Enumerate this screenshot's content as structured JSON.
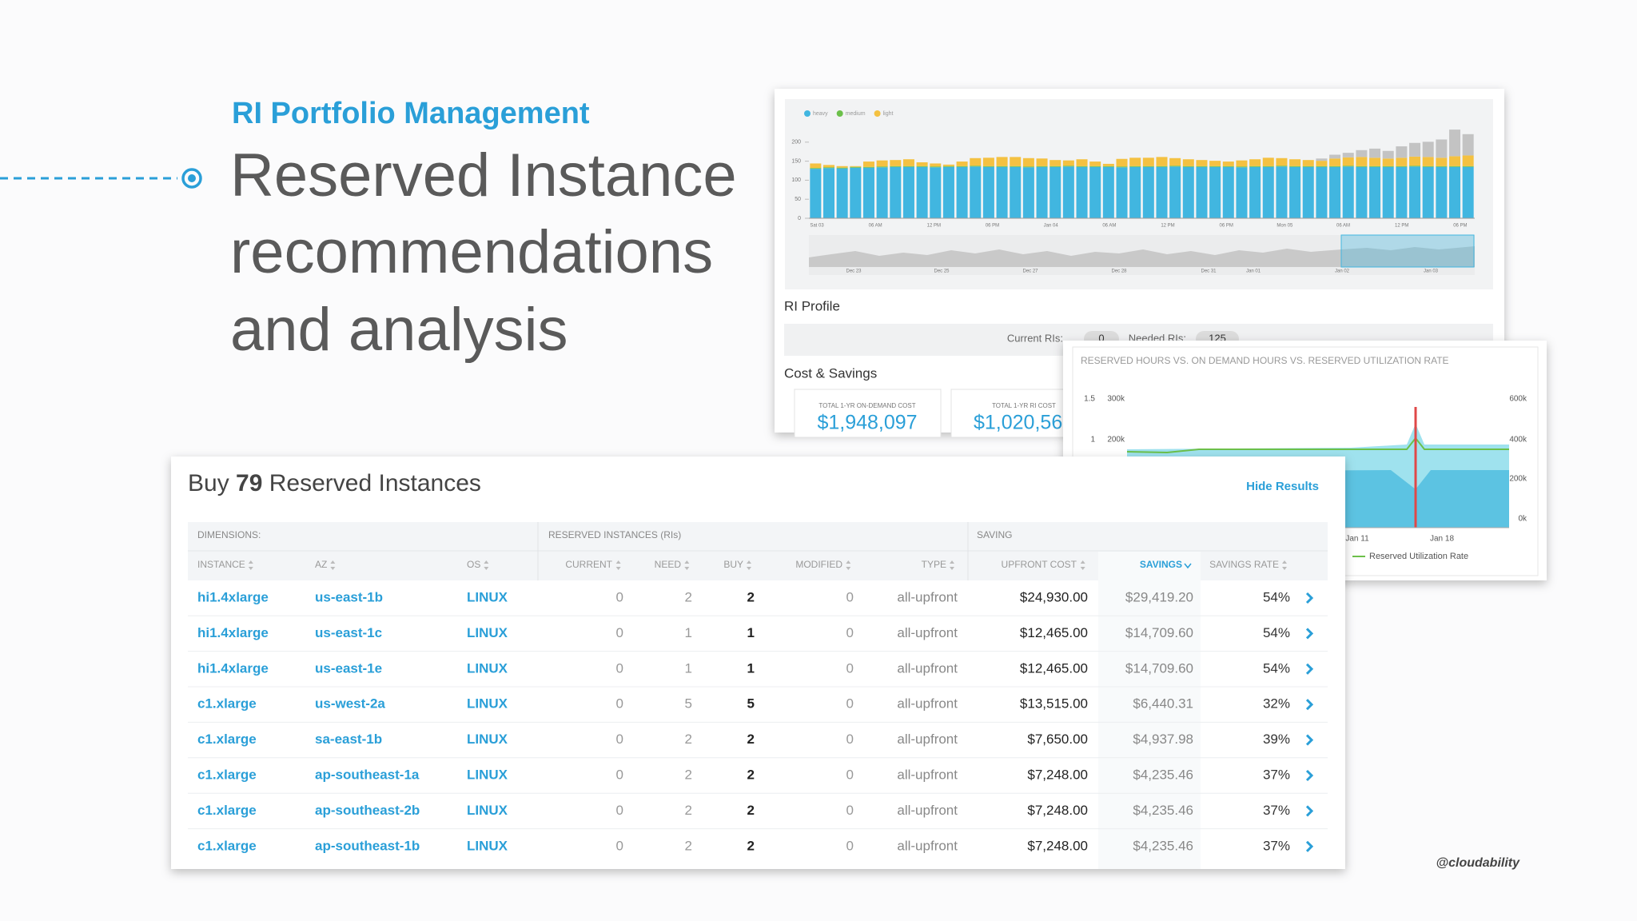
{
  "slide": {
    "kicker": "RI Portfolio Management",
    "headline": [
      "Reserved Instance",
      "recommendations",
      "and analysis"
    ],
    "credit": "@cloudability"
  },
  "usage_chart": {
    "type": "bar",
    "stacked": true,
    "ylim": [
      0,
      250
    ],
    "yticks": [
      0,
      50,
      100,
      150,
      200
    ],
    "x_labels": [
      "Sat 03",
      "06 AM",
      "12 PM",
      "06 PM",
      "Jan 04",
      "06 AM",
      "12 PM",
      "06 PM",
      "Mon 05",
      "06 AM",
      "12 PM",
      "06 PM"
    ],
    "navigator_labels": [
      "Dec 23",
      "Dec 25",
      "Dec 27",
      "Dec 28",
      "Dec 31",
      "Jan 01",
      "Jan 02",
      "Jan 03"
    ],
    "series": [
      {
        "name": "heavy",
        "color": "#41b6e0",
        "values": [
          130,
          132,
          131,
          133,
          133,
          134,
          135,
          135,
          135,
          134,
          135,
          135,
          136,
          135,
          135,
          135,
          134,
          135,
          135,
          136,
          135,
          135,
          135,
          134,
          135,
          135,
          135,
          136,
          135,
          135,
          135,
          135,
          134,
          135,
          135,
          136,
          135,
          135,
          135,
          135,
          136,
          135,
          135,
          135,
          135,
          136,
          135,
          135,
          135,
          135
        ]
      },
      {
        "name": "medium",
        "color": "#6cc04a",
        "values": [
          2,
          2,
          2,
          2,
          2,
          2,
          2,
          2,
          2,
          2,
          2,
          2,
          2,
          2,
          2,
          2,
          2,
          2,
          2,
          2,
          2,
          2,
          2,
          2,
          2,
          2,
          2,
          2,
          2,
          2,
          2,
          2,
          2,
          2,
          2,
          2,
          2,
          2,
          2,
          2,
          2,
          2,
          2,
          2,
          2,
          2,
          2,
          2,
          2,
          2
        ]
      },
      {
        "name": "light",
        "color": "#f4c141",
        "values": [
          12,
          6,
          4,
          2,
          14,
          16,
          16,
          18,
          10,
          8,
          4,
          12,
          20,
          22,
          24,
          24,
          22,
          20,
          16,
          14,
          18,
          12,
          6,
          20,
          22,
          22,
          24,
          20,
          18,
          16,
          14,
          12,
          16,
          18,
          22,
          20,
          18,
          16,
          14,
          20,
          22,
          24,
          22,
          20,
          22,
          24,
          24,
          22,
          26,
          28
        ]
      },
      {
        "color": "#c3c3c3",
        "values": [
          0,
          0,
          0,
          0,
          0,
          0,
          0,
          0,
          0,
          0,
          0,
          0,
          0,
          0,
          0,
          0,
          0,
          0,
          0,
          0,
          0,
          0,
          0,
          0,
          0,
          0,
          0,
          0,
          0,
          0,
          0,
          0,
          0,
          0,
          0,
          0,
          0,
          0,
          6,
          10,
          12,
          18,
          24,
          20,
          30,
          36,
          40,
          48,
          70,
          56
        ]
      }
    ]
  },
  "ri_profile": {
    "title": "RI Profile",
    "current_label": "Current RIs:",
    "current": 0,
    "needed_label": "Needed RIs:",
    "needed": 125
  },
  "cost_savings": {
    "title": "Cost & Savings",
    "cards": [
      {
        "label": "TOTAL 1-YR ON-DEMAND COST",
        "value": "$1,948,097"
      },
      {
        "label": "TOTAL 1-YR RI COST",
        "value": "$1,020,56"
      }
    ]
  },
  "hours_chart": {
    "title": "RESERVED HOURS VS. ON DEMAND HOURS VS. RESERVED UTILIZATION RATE",
    "left_ticks": [
      "1.5",
      "1"
    ],
    "left_ticks_2": [
      "300k",
      "200k"
    ],
    "right_ticks": [
      "600k",
      "400k",
      "200k",
      "0k"
    ],
    "x_labels": [
      "Jan 11",
      "Jan 18"
    ],
    "legend": "Reserved Utilization Rate"
  },
  "table": {
    "title_prefix": "Buy",
    "count": 79,
    "title_suffix": "Reserved Instances",
    "action": "Hide Results",
    "groups": [
      "DIMENSIONS:",
      "RESERVED INSTANCES (RIs)",
      "SAVING"
    ],
    "columns": [
      "INSTANCE",
      "AZ",
      "OS",
      "CURRENT",
      "NEED",
      "BUY",
      "MODIFIED",
      "TYPE",
      "UPFRONT COST",
      "SAVINGS",
      "SAVINGS RATE"
    ],
    "rows": [
      [
        "hi1.4xlarge",
        "us-east-1b",
        "LINUX",
        0,
        2,
        2,
        0,
        "all-upfront",
        "$24,930.00",
        "$29,419.20",
        "54%"
      ],
      [
        "hi1.4xlarge",
        "us-east-1c",
        "LINUX",
        0,
        1,
        1,
        0,
        "all-upfront",
        "$12,465.00",
        "$14,709.60",
        "54%"
      ],
      [
        "hi1.4xlarge",
        "us-east-1e",
        "LINUX",
        0,
        1,
        1,
        0,
        "all-upfront",
        "$12,465.00",
        "$14,709.60",
        "54%"
      ],
      [
        "c1.xlarge",
        "us-west-2a",
        "LINUX",
        0,
        5,
        5,
        0,
        "all-upfront",
        "$13,515.00",
        "$6,440.31",
        "32%"
      ],
      [
        "c1.xlarge",
        "sa-east-1b",
        "LINUX",
        0,
        2,
        2,
        0,
        "all-upfront",
        "$7,650.00",
        "$4,937.98",
        "39%"
      ],
      [
        "c1.xlarge",
        "ap-southeast-1a",
        "LINUX",
        0,
        2,
        2,
        0,
        "all-upfront",
        "$7,248.00",
        "$4,235.46",
        "37%"
      ],
      [
        "c1.xlarge",
        "ap-southeast-2b",
        "LINUX",
        0,
        2,
        2,
        0,
        "all-upfront",
        "$7,248.00",
        "$4,235.46",
        "37%"
      ],
      [
        "c1.xlarge",
        "ap-southeast-1b",
        "LINUX",
        0,
        2,
        2,
        0,
        "all-upfront",
        "$7,248.00",
        "$4,235.46",
        "37%"
      ]
    ]
  }
}
